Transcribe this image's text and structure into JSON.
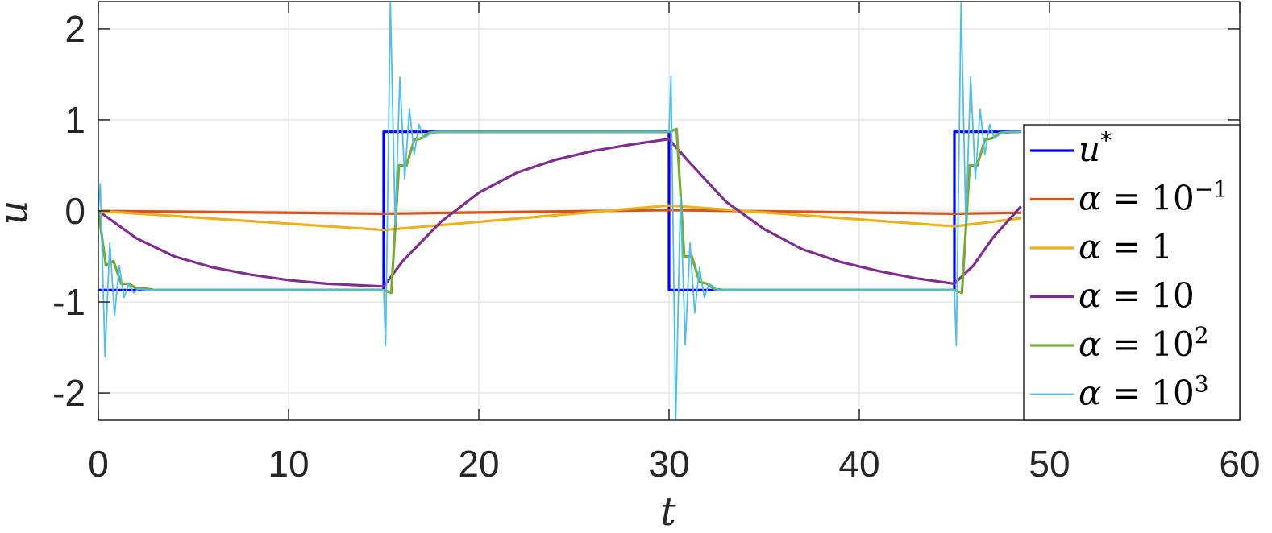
{
  "chart_data": {
    "type": "line",
    "title": "",
    "xlabel": "t",
    "ylabel": "u",
    "xlim": [
      0,
      60
    ],
    "ylim": [
      -2.3,
      2.3
    ],
    "xticks": [
      0,
      10,
      20,
      30,
      40,
      50,
      60
    ],
    "xtick_labels": [
      "0",
      "10",
      "20",
      "30",
      "40",
      "50",
      "60"
    ],
    "yticks": [
      2,
      1,
      0,
      -1,
      -2
    ],
    "ytick_labels": [
      "2",
      "1",
      "0",
      "-1",
      "-2"
    ],
    "grid": true,
    "legend_position": "right",
    "series": [
      {
        "name": "u*",
        "color": "#0000ff",
        "x": [
          0,
          15,
          15,
          30,
          30,
          45,
          45,
          48.5
        ],
        "y": [
          -0.87,
          -0.87,
          0.87,
          0.87,
          -0.87,
          -0.87,
          0.87,
          0.87
        ]
      },
      {
        "name": "α = 10−1",
        "color": "#d95319",
        "x": [
          0,
          15,
          30,
          45,
          48.5
        ],
        "y": [
          0.0,
          -0.03,
          0.01,
          -0.03,
          -0.02
        ]
      },
      {
        "name": "α = 1",
        "color": "#edb120",
        "x": [
          0,
          15,
          30,
          45,
          48.5
        ],
        "y": [
          0.0,
          -0.21,
          0.06,
          -0.17,
          -0.08
        ]
      },
      {
        "name": "α = 10",
        "color": "#7e2f8e",
        "x": [
          0,
          2,
          4,
          6,
          8,
          10,
          12,
          15,
          16,
          18,
          20,
          22,
          24,
          26,
          28,
          30,
          31,
          33,
          35,
          37,
          39,
          41,
          43,
          45,
          46,
          47,
          48.5
        ],
        "y": [
          0.0,
          -0.3,
          -0.5,
          -0.62,
          -0.7,
          -0.76,
          -0.8,
          -0.83,
          -0.55,
          -0.12,
          0.2,
          0.42,
          0.56,
          0.66,
          0.73,
          0.79,
          0.55,
          0.1,
          -0.2,
          -0.42,
          -0.56,
          -0.66,
          -0.74,
          -0.8,
          -0.6,
          -0.3,
          0.05
        ]
      },
      {
        "name": "α = 102",
        "color": "#77ac30",
        "x": [
          0,
          0.4,
          0.8,
          1.2,
          1.6,
          2.0,
          2.4,
          3.0,
          15,
          15.4,
          15.8,
          16.2,
          16.6,
          17.0,
          17.4,
          18.0,
          30,
          30.4,
          30.8,
          31.2,
          31.6,
          32.0,
          32.4,
          33.0,
          45,
          45.4,
          45.8,
          46.2,
          46.6,
          47.0,
          47.4,
          48.5
        ],
        "y": [
          0.0,
          -0.6,
          -0.55,
          -0.8,
          -0.8,
          -0.85,
          -0.85,
          -0.87,
          -0.87,
          -0.9,
          0.5,
          0.5,
          0.78,
          0.8,
          0.86,
          0.87,
          0.87,
          0.9,
          -0.5,
          -0.5,
          -0.78,
          -0.8,
          -0.86,
          -0.87,
          -0.87,
          -0.9,
          0.5,
          0.5,
          0.78,
          0.8,
          0.86,
          0.87
        ]
      },
      {
        "name": "α = 103",
        "color": "#4dbeee",
        "x": [
          0,
          0.1,
          0.35,
          0.6,
          0.85,
          1.1,
          1.35,
          1.6,
          1.85,
          2.1,
          2.6,
          15,
          15.1,
          15.35,
          15.6,
          15.85,
          16.1,
          16.35,
          16.6,
          16.85,
          17.1,
          17.6,
          30,
          30.1,
          30.35,
          30.6,
          30.85,
          31.1,
          31.35,
          31.6,
          31.85,
          32.1,
          32.6,
          45,
          45.1,
          45.35,
          45.6,
          45.85,
          46.1,
          46.35,
          46.6,
          46.85,
          47.1,
          47.6,
          48.5
        ],
        "y": [
          0.0,
          0.3,
          -1.6,
          -0.35,
          -1.15,
          -0.6,
          -0.95,
          -0.8,
          -0.9,
          -0.86,
          -0.87,
          -0.87,
          -1.48,
          2.3,
          -0.15,
          1.47,
          0.35,
          1.12,
          0.62,
          0.95,
          0.8,
          0.87,
          0.87,
          1.48,
          -2.3,
          0.15,
          -1.47,
          -0.35,
          -1.12,
          -0.62,
          -0.95,
          -0.8,
          -0.87,
          -0.87,
          -1.48,
          2.3,
          -0.15,
          1.47,
          0.35,
          1.12,
          0.62,
          0.95,
          0.8,
          0.87,
          0.87
        ]
      }
    ]
  },
  "legend": {
    "items": [
      {
        "name": "u*",
        "symbol": "u",
        "sup": "*"
      },
      {
        "name": "α = 10−1",
        "symbol": "α",
        "text": " = 10",
        "sup": "−1"
      },
      {
        "name": "α = 1",
        "symbol": "α",
        "text": " = 1",
        "sup": ""
      },
      {
        "name": "α = 10",
        "symbol": "α",
        "text": " = 10",
        "sup": ""
      },
      {
        "name": "α = 102",
        "symbol": "α",
        "text": " = 10",
        "sup": "2"
      },
      {
        "name": "α = 103",
        "symbol": "α",
        "text": " = 10",
        "sup": "3"
      }
    ]
  }
}
